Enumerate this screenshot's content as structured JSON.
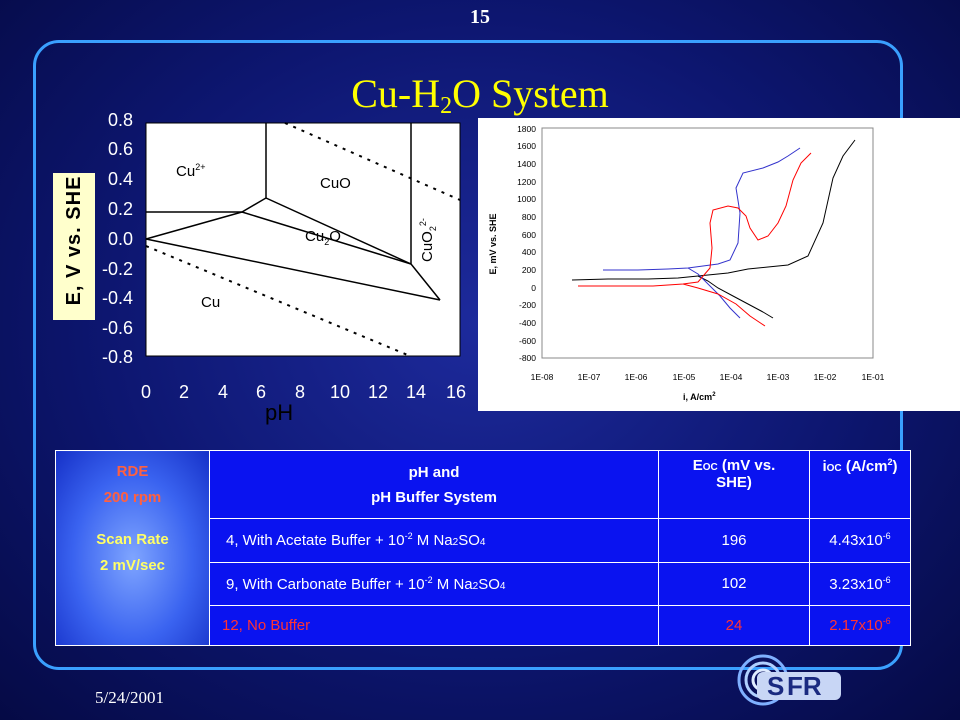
{
  "slide_number": "15",
  "title": {
    "pre": "Cu-H",
    "sub": "2",
    "post": "O System"
  },
  "date": "5/24/2001",
  "pourbaix": {
    "ylabel": "E, V vs. SHE",
    "xlabel": "pH",
    "y_ticks": [
      "0.8",
      "0.6",
      "0.4",
      "0.2",
      "0.0",
      "-0.2",
      "-0.4",
      "-0.6",
      "-0.8"
    ],
    "x_ticks": [
      "0",
      "2",
      "4",
      "6",
      "8",
      "10",
      "12",
      "14",
      "16"
    ],
    "regions": {
      "cu2": "Cu",
      "cu2_sup": "2+",
      "cuo": "CuO",
      "cu2o_a": "Cu",
      "cu2o_sub": "2",
      "cu2o_b": "O",
      "cuo2": "CuO",
      "cuo2_sub": "2",
      "cuo2_sup": "2-",
      "cu": "Cu"
    }
  },
  "polarization": {
    "ylabel": "E, mV vs. SHE",
    "xlabel": "i, A/cm",
    "xlabel_sup": "2",
    "y_ticks": [
      "1800",
      "1600",
      "1400",
      "1200",
      "1000",
      "800",
      "600",
      "400",
      "200",
      "0",
      "-200",
      "-400",
      "-600",
      "-800"
    ],
    "x_ticks": [
      "1E-08",
      "1E-07",
      "1E-06",
      "1E-05",
      "1E-04",
      "1E-03",
      "1E-02",
      "1E-01"
    ],
    "colors": {
      "ph4": "#000000",
      "ph9": "#3333cc",
      "ph12": "#ff0000"
    }
  },
  "table": {
    "rde": {
      "l1": "RDE",
      "l2": "200 rpm",
      "l3": "Scan Rate",
      "l4": "2 mV/sec"
    },
    "header": {
      "ph_l1": "pH and",
      "ph_l2": "pH Buffer System",
      "eoc_a": "E",
      "eoc_sub": "OC",
      "eoc_b": " (mV vs.",
      "eoc_l2": "SHE)",
      "ioc_a": "i",
      "ioc_sub": "OC",
      "ioc_b": " (A/cm",
      "ioc_sup": "2",
      "ioc_c": ")"
    },
    "rows": [
      {
        "a": "4,  With Acetate Buffer + 10",
        "exp": "-2",
        "b": " M Na",
        "sub": "2",
        "c": "SO",
        "sub2": "4",
        "eoc": "196",
        "ioc": "4.43x10",
        "ioc_exp": "-6"
      },
      {
        "a": "9,  With Carbonate Buffer + 10",
        "exp": "-2",
        "b": " M Na",
        "sub": "2",
        "c": "SO",
        "sub2": "4",
        "eoc": "102",
        "ioc": "3.23x10",
        "ioc_exp": "-6"
      },
      {
        "a": "12, No Buffer",
        "eoc": "24",
        "ioc": "2.17x10",
        "ioc_exp": "-6"
      }
    ]
  },
  "logo": {
    "text": "FR",
    "letter": "S"
  }
}
